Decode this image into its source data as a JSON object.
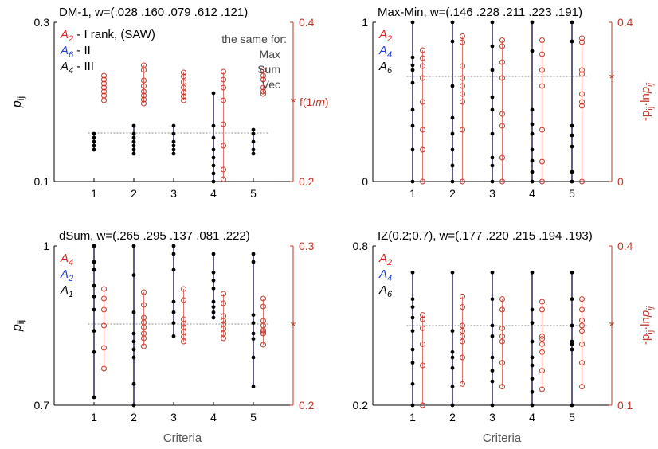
{
  "colors": {
    "black_series": "#000000",
    "red_series": "#c0392b",
    "stem_black": "#1a1a4d",
    "stem_red": "#e07a70",
    "red_axis": "#c0392b",
    "blue_label": "#1f3fd6",
    "red_label": "#e0201b",
    "axis": "#000000",
    "mean_line": "#888888"
  },
  "figure": {
    "xlabel": "Criteria",
    "left_ylabel": "p",
    "left_ylabel_sub": "ij",
    "right_ylabel": "-p",
    "right_ylabel_sub1": "ij",
    "right_ylabel_mid": "·ln",
    "right_ylabel_p": "p",
    "right_ylabel_sub2": "ij"
  },
  "chart_data": [
    {
      "type": "scatter",
      "title": "DM-1, w=(.028 .160 .079 .612 .121)",
      "x_ticks": [
        "1",
        "2",
        "3",
        "4",
        "5"
      ],
      "xlim": [
        0,
        6
      ],
      "left_axis": {
        "ylim": [
          0.1,
          0.3
        ],
        "ticks": [
          "0.1",
          "0.3"
        ]
      },
      "right_axis": {
        "ylim": [
          0.2,
          0.4
        ],
        "ticks": [
          "0.2",
          "0.4"
        ]
      },
      "show_left_ylabel": true,
      "show_right_ylabel": false,
      "mean_left": 0.161,
      "mean_right_marker": 0.3,
      "mean_marker_label": "f(1/m)",
      "legend": [
        {
          "sym": "A",
          "sub": "2",
          "color": "red",
          "text": "- I  rank, (SAW)"
        },
        {
          "sym": "A",
          "sub": "6",
          "color": "blue",
          "text": "- II"
        },
        {
          "sym": "A",
          "sub": "4",
          "color": "black",
          "text": "- III"
        }
      ],
      "side_note": [
        "the same for:",
        "Max",
        "Sum",
        "Vec"
      ],
      "series": [
        {
          "axis": "left",
          "color": "black",
          "points": [
            [
              1,
              [
                0.14,
                0.145,
                0.15,
                0.155,
                0.16
              ]
            ],
            [
              2,
              [
                0.135,
                0.14,
                0.145,
                0.15,
                0.155,
                0.16,
                0.17
              ]
            ],
            [
              3,
              [
                0.135,
                0.14,
                0.145,
                0.15,
                0.16,
                0.17
              ]
            ],
            [
              4,
              [
                0.1,
                0.11,
                0.12,
                0.13,
                0.14,
                0.155,
                0.17,
                0.211
              ]
            ],
            [
              5,
              [
                0.135,
                0.14,
                0.15,
                0.16,
                0.165
              ]
            ]
          ]
        },
        {
          "axis": "right",
          "color": "red",
          "points": [
            [
              1,
              [
                0.302,
                0.308,
                0.313,
                0.318,
                0.323,
                0.328,
                0.333
              ]
            ],
            [
              2,
              [
                0.298,
                0.303,
                0.308,
                0.313,
                0.32,
                0.327,
                0.34,
                0.346
              ]
            ],
            [
              3,
              [
                0.302,
                0.307,
                0.312,
                0.318,
                0.325,
                0.332,
                0.337
              ]
            ],
            [
              4,
              [
                0.203,
                0.215,
                0.245,
                0.272,
                0.302,
                0.318,
                0.328,
                0.338
              ]
            ],
            [
              5,
              [
                0.31,
                0.313,
                0.318,
                0.328,
                0.333,
                0.34
              ]
            ]
          ]
        }
      ]
    },
    {
      "type": "scatter",
      "title": "Max-Min, w=(.146 .228 .211 .223 .191)",
      "x_ticks": [
        "1",
        "2",
        "3",
        "4",
        "5"
      ],
      "xlim": [
        0,
        6
      ],
      "left_axis": {
        "ylim": [
          0,
          1
        ],
        "ticks": [
          "0",
          "1"
        ]
      },
      "right_axis": {
        "ylim": [
          0,
          0.4
        ],
        "ticks": [
          "0",
          "0.4"
        ]
      },
      "show_left_ylabel": false,
      "show_right_ylabel": true,
      "mean_left": 0.66,
      "mean_right_marker": 0.26,
      "mean_marker_label": "",
      "legend": [
        {
          "sym": "A",
          "sub": "2",
          "color": "red",
          "text": ""
        },
        {
          "sym": "A",
          "sub": "4",
          "color": "blue",
          "text": ""
        },
        {
          "sym": "A",
          "sub": "6",
          "color": "black",
          "text": ""
        }
      ],
      "side_note": [],
      "series": [
        {
          "axis": "left",
          "color": "black",
          "points": [
            [
              1,
              [
                0.0,
                0.2,
                0.35,
                0.45,
                0.62,
                0.7,
                0.73,
                0.78,
                1.0
              ]
            ],
            [
              2,
              [
                0.0,
                0.1,
                0.2,
                0.3,
                0.4,
                0.6,
                0.88,
                1.0
              ]
            ],
            [
              3,
              [
                0.0,
                0.1,
                0.15,
                0.3,
                0.45,
                0.53,
                0.7,
                0.85,
                1.0
              ]
            ],
            [
              4,
              [
                0.0,
                0.06,
                0.13,
                0.2,
                0.3,
                0.36,
                0.45,
                0.82,
                1.0
              ]
            ],
            [
              5,
              [
                0.0,
                0.06,
                0.22,
                0.29,
                0.35,
                0.88,
                1.0
              ]
            ]
          ]
        },
        {
          "axis": "right",
          "color": "red",
          "points": [
            [
              1,
              [
                0.0,
                0.08,
                0.13,
                0.2,
                0.26,
                0.29,
                0.31,
                0.33
              ]
            ],
            [
              2,
              [
                0.0,
                0.13,
                0.2,
                0.22,
                0.24,
                0.26,
                0.29,
                0.35,
                0.365
              ]
            ],
            [
              3,
              [
                0.0,
                0.06,
                0.14,
                0.17,
                0.26,
                0.3,
                0.34,
                0.355
              ]
            ],
            [
              4,
              [
                0.0,
                0.05,
                0.13,
                0.24,
                0.28,
                0.32,
                0.355
              ]
            ],
            [
              5,
              [
                0.0,
                0.19,
                0.2,
                0.22,
                0.27,
                0.28,
                0.35,
                0.36
              ]
            ]
          ]
        }
      ]
    },
    {
      "type": "scatter",
      "title": "dSum, w=(.265 .295 .137 .081 .222)",
      "x_ticks": [
        "1",
        "2",
        "3",
        "4",
        "5"
      ],
      "xlim": [
        0,
        6
      ],
      "left_axis": {
        "ylim": [
          0.7,
          1
        ],
        "ticks": [
          "0.7",
          "1"
        ]
      },
      "right_axis": {
        "ylim": [
          0.2,
          0.3
        ],
        "ticks": [
          "0.2",
          "0.3"
        ]
      },
      "show_left_ylabel": true,
      "show_right_ylabel": false,
      "mean_left": 0.853,
      "mean_right_marker": 0.25,
      "mean_marker_label": "",
      "legend": [
        {
          "sym": "A",
          "sub": "4",
          "color": "red",
          "text": ""
        },
        {
          "sym": "A",
          "sub": "2",
          "color": "blue",
          "text": ""
        },
        {
          "sym": "A",
          "sub": "1",
          "color": "black",
          "text": ""
        }
      ],
      "side_note": [],
      "series": [
        {
          "axis": "left",
          "color": "black",
          "points": [
            [
              1,
              [
                0.715,
                0.8,
                0.84,
                0.88,
                0.905,
                0.925,
                0.955,
                0.97,
                1.0
              ]
            ],
            [
              2,
              [
                0.7,
                0.74,
                0.79,
                0.805,
                0.82,
                0.835,
                0.875,
                0.945,
                1.0
              ]
            ],
            [
              3,
              [
                0.83,
                0.855,
                0.875,
                0.895,
                0.955,
                0.985,
                1.0
              ]
            ],
            [
              4,
              [
                0.865,
                0.875,
                0.885,
                0.895,
                0.92,
                0.935,
                0.95,
                0.985
              ]
            ],
            [
              5,
              [
                0.735,
                0.79,
                0.825,
                0.835,
                0.855,
                0.87,
                0.97,
                0.985
              ]
            ]
          ]
        },
        {
          "axis": "right",
          "color": "red",
          "points": [
            [
              1,
              [
                0.223,
                0.236,
                0.25,
                0.26,
                0.267,
                0.273
              ]
            ],
            [
              2,
              [
                0.237,
                0.242,
                0.245,
                0.249,
                0.252,
                0.255,
                0.263,
                0.271
              ]
            ],
            [
              3,
              [
                0.24,
                0.243,
                0.246,
                0.249,
                0.251,
                0.254,
                0.266,
                0.273
              ]
            ],
            [
              4,
              [
                0.242,
                0.245,
                0.248,
                0.251,
                0.253,
                0.256,
                0.264,
                0.27
              ]
            ],
            [
              5,
              [
                0.238,
                0.245,
                0.246,
                0.247,
                0.25,
                0.253,
                0.262,
                0.267
              ]
            ]
          ]
        }
      ]
    },
    {
      "type": "scatter",
      "title": "IZ(0.2;0.7), w=(.177 .220 .215 .194 .193)",
      "x_ticks": [
        "1",
        "2",
        "3",
        "4",
        "5"
      ],
      "xlim": [
        0,
        6
      ],
      "left_axis": {
        "ylim": [
          0.2,
          0.8
        ],
        "ticks": [
          "0.2",
          "0.8"
        ]
      },
      "right_axis": {
        "ylim": [
          0.1,
          0.4
        ],
        "ticks": [
          "0.1",
          "0.4"
        ]
      },
      "show_left_ylabel": false,
      "show_right_ylabel": true,
      "mean_left": 0.5,
      "mean_right_marker": 0.25,
      "mean_marker_label": "",
      "legend": [
        {
          "sym": "A",
          "sub": "2",
          "color": "red",
          "text": ""
        },
        {
          "sym": "A",
          "sub": "4",
          "color": "blue",
          "text": ""
        },
        {
          "sym": "A",
          "sub": "6",
          "color": "black",
          "text": ""
        }
      ],
      "side_note": [],
      "series": [
        {
          "axis": "left",
          "color": "black",
          "points": [
            [
              1,
              [
                0.2,
                0.28,
                0.36,
                0.41,
                0.48,
                0.53,
                0.57,
                0.6,
                0.7
              ]
            ],
            [
              2,
              [
                0.2,
                0.27,
                0.34,
                0.38,
                0.4,
                0.48,
                0.7
              ]
            ],
            [
              3,
              [
                0.2,
                0.29,
                0.33,
                0.38,
                0.46,
                0.5,
                0.6,
                0.7
              ]
            ],
            [
              4,
              [
                0.2,
                0.25,
                0.3,
                0.35,
                0.38,
                0.44,
                0.51,
                0.56,
                0.7
              ]
            ],
            [
              5,
              [
                0.2,
                0.41,
                0.43,
                0.44,
                0.5,
                0.6,
                0.7
              ]
            ]
          ]
        },
        {
          "axis": "right",
          "color": "red",
          "points": [
            [
              1,
              [
                0.1,
                0.175,
                0.215,
                0.245,
                0.262,
                0.27
              ]
            ],
            [
              2,
              [
                0.14,
                0.19,
                0.22,
                0.23,
                0.24,
                0.25,
                0.285,
                0.305
              ]
            ],
            [
              3,
              [
                0.135,
                0.18,
                0.22,
                0.23,
                0.245,
                0.28,
                0.3
              ]
            ],
            [
              4,
              [
                0.13,
                0.165,
                0.2,
                0.215,
                0.225,
                0.23,
                0.28,
                0.295
              ]
            ],
            [
              5,
              [
                0.135,
                0.18,
                0.215,
                0.24,
                0.25,
                0.26,
                0.28,
                0.3
              ]
            ]
          ]
        }
      ]
    }
  ]
}
